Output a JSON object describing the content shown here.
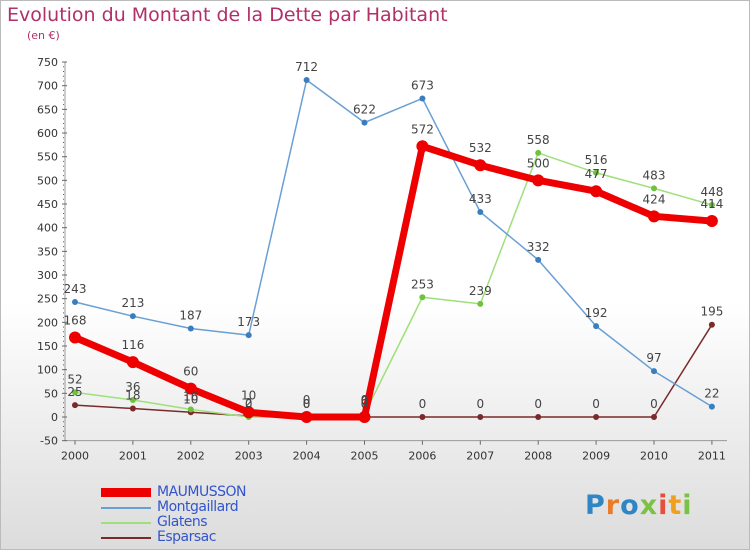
{
  "chart_data": {
    "type": "line",
    "title": "Evolution du Montant de la Dette par Habitant",
    "subtitle": "(en €)",
    "categories": [
      "2000",
      "2001",
      "2002",
      "2003",
      "2004",
      "2005",
      "2006",
      "2007",
      "2008",
      "2009",
      "2010",
      "2011"
    ],
    "ylim": [
      -50,
      750
    ],
    "yticks": [
      "-50",
      "0",
      "50",
      "100",
      "150",
      "200",
      "250",
      "300",
      "350",
      "400",
      "450",
      "500",
      "550",
      "600",
      "650",
      "700",
      "750"
    ],
    "grid": false,
    "legend_position": "bottom-left",
    "series": [
      {
        "name": "MAUMUSSON",
        "color": "#ee0000",
        "point_color": "#ee0000",
        "width": 7,
        "point_radius": 6,
        "values": [
          168,
          116,
          60,
          10,
          0,
          0,
          572,
          532,
          500,
          477,
          424,
          414
        ],
        "labels": [
          "168",
          "116",
          "60",
          "10",
          "0",
          "0",
          "572",
          "532",
          "500",
          "477",
          "424",
          "414"
        ]
      },
      {
        "name": "Montgaillard",
        "color": "#6a9fd4",
        "point_color": "#3a7ec0",
        "width": 1.5,
        "point_radius": 3,
        "values": [
          243,
          213,
          187,
          173,
          712,
          622,
          673,
          433,
          332,
          192,
          97,
          22
        ],
        "labels": [
          "243",
          "213",
          "187",
          "173",
          "712",
          "622",
          "673",
          "433",
          "332",
          "192",
          "97",
          "22"
        ]
      },
      {
        "name": "Glatens",
        "color": "#9ee07a",
        "point_color": "#6ec23e",
        "width": 1.5,
        "point_radius": 3,
        "values": [
          52,
          36,
          16,
          0,
          0,
          6,
          253,
          239,
          558,
          516,
          483,
          448
        ],
        "labels": [
          "52",
          "36",
          "16",
          "0",
          "0",
          "6",
          "253",
          "239",
          "558",
          "516",
          "483",
          "448"
        ]
      },
      {
        "name": "Esparsac",
        "color": "#7a2a2a",
        "point_color": "#7a2a2a",
        "width": 1.5,
        "point_radius": 3,
        "values": [
          25,
          18,
          10,
          2,
          0,
          0,
          0,
          0,
          0,
          0,
          0,
          195
        ],
        "labels": [
          "25",
          "18",
          "10",
          "2",
          "0",
          "0",
          "0",
          "0",
          "0",
          "0",
          "0",
          "195"
        ]
      }
    ]
  },
  "logo": {
    "text": "Proxiti",
    "letters": [
      "P",
      "r",
      "o",
      "x",
      "i",
      "t",
      "i"
    ]
  }
}
